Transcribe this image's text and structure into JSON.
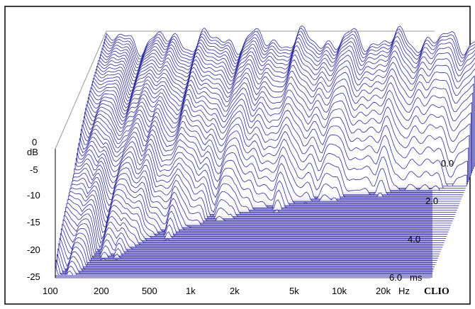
{
  "chart_data": {
    "type": "waterfall",
    "title": "",
    "y_axis": {
      "unit_label": "dB",
      "ticks": [
        "0",
        "-5",
        "-10",
        "-15",
        "-20",
        "-25"
      ],
      "range": [
        -25,
        0
      ]
    },
    "x_axis": {
      "ticks": [
        "100",
        "200",
        "500",
        "1k",
        "2k",
        "5k",
        "10k",
        "20k"
      ],
      "unit_label": "Hz",
      "scale": "log",
      "range_hz": [
        100,
        20000
      ]
    },
    "z_axis": {
      "ticks": [
        "0.0",
        "2.0",
        "4.0",
        "6.0"
      ],
      "unit_label": "ms",
      "range_ms": [
        0,
        6
      ]
    },
    "brand": "CLIO",
    "grid": false,
    "colors": {
      "curve": "#2e2ba0",
      "floor": "#9c98d6",
      "frame": "#000000"
    },
    "slice_count": 60
  }
}
